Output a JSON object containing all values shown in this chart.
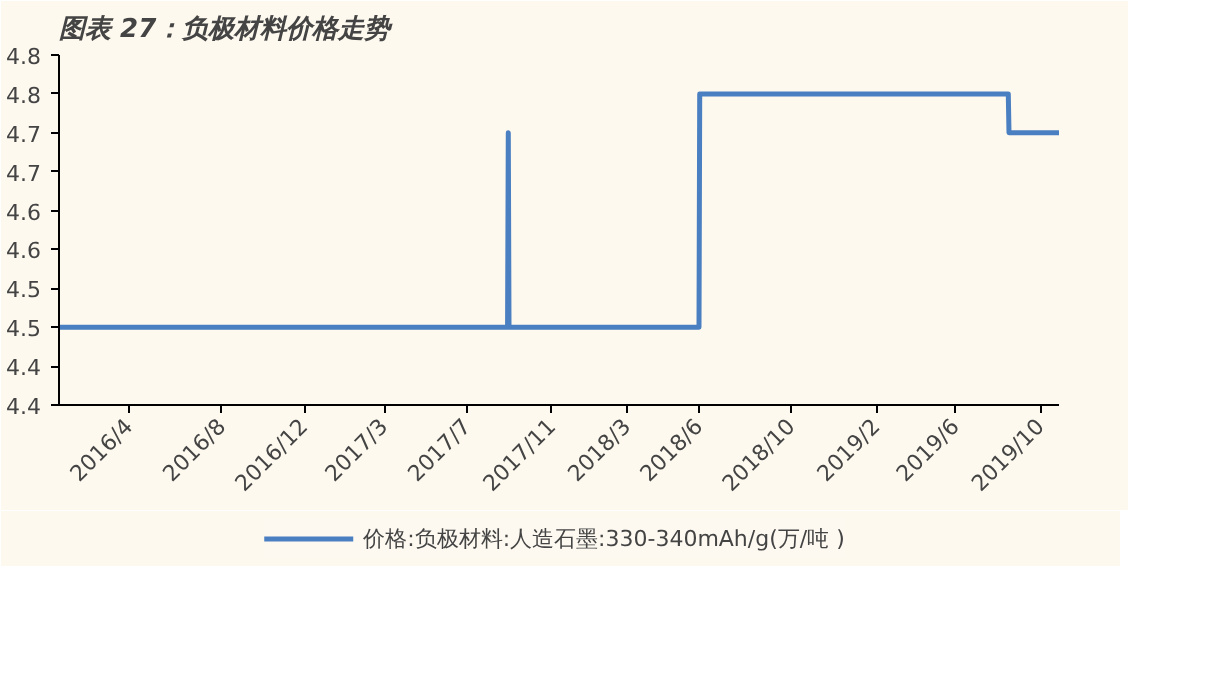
{
  "chart_data": {
    "type": "line",
    "title": "图表 27：负极材料价格走势",
    "x": [
      "2016-01-01",
      "2017-09-20",
      "2017-09-21",
      "2017-09-22",
      "2018-06-15",
      "2018-06-16",
      "2019-08-22",
      "2019-08-23",
      "2019-11-01"
    ],
    "series": [
      {
        "name": "价格:负极材料:人造石墨:330-340mAh/g(万/吨 )",
        "color": "#4a7fc1",
        "values": [
          4.5,
          4.5,
          4.75,
          4.5,
          4.5,
          4.8,
          4.8,
          4.75,
          4.75
        ]
      }
    ],
    "xlim": [
      "2016-01-01",
      "2019-11-01"
    ],
    "xticks": [
      {
        "value": "2016-04-08",
        "label": "2016/4"
      },
      {
        "value": "2016-08-16",
        "label": "2016/8"
      },
      {
        "value": "2016-12-09",
        "label": "2016/12"
      },
      {
        "value": "2017-03-31",
        "label": "2017/3"
      },
      {
        "value": "2017-07-25",
        "label": "2017/7"
      },
      {
        "value": "2017-11-21",
        "label": "2017/11"
      },
      {
        "value": "2018-03-06",
        "label": "2018/3"
      },
      {
        "value": "2018-06-15",
        "label": "2018/6"
      },
      {
        "value": "2018-10-22",
        "label": "2018/10"
      },
      {
        "value": "2019-02-18",
        "label": "2019/2"
      },
      {
        "value": "2019-06-09",
        "label": "2019/6"
      },
      {
        "value": "2019-10-06",
        "label": "2019/10"
      }
    ],
    "ylim": [
      4.4,
      4.85
    ],
    "yticks": [
      {
        "value": 4.4,
        "label": "4.4"
      },
      {
        "value": 4.45,
        "label": "4.4"
      },
      {
        "value": 4.5,
        "label": "4.5"
      },
      {
        "value": 4.55,
        "label": "4.5"
      },
      {
        "value": 4.6,
        "label": "4.6"
      },
      {
        "value": 4.65,
        "label": "4.6"
      },
      {
        "value": 4.7,
        "label": "4.7"
      },
      {
        "value": 4.75,
        "label": "4.7"
      },
      {
        "value": 4.8,
        "label": "4.8"
      },
      {
        "value": 4.85,
        "label": "4.8"
      }
    ],
    "grid": false,
    "legend": "bottom",
    "line_style": "solid"
  }
}
